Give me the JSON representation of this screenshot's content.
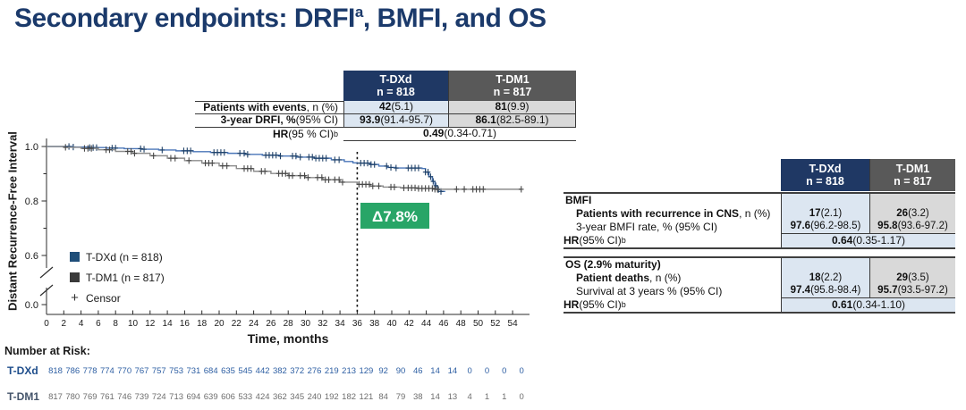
{
  "slide": {
    "title": {
      "pre": "Secondary endpoints: DRFI",
      "sup": "a",
      "post": ", BMFI, and OS"
    }
  },
  "columns": {
    "dxd": {
      "name": "T-DXd",
      "n": "n = 818"
    },
    "dm1": {
      "name": "T-DM1",
      "n": "n = 817"
    }
  },
  "drfi_table": {
    "rows": [
      {
        "label_b": "Patients with events",
        "label_r": ", n (%)",
        "dxd_b": "42",
        "dxd_r": " (5.1)",
        "dm1_b": "81",
        "dm1_r": " (9.9)"
      },
      {
        "label_b": "3-year DRFI, %",
        "label_r": " (95% CI)",
        "dxd_b": "93.9",
        "dxd_r": " (91.4-95.7)",
        "dm1_b": "86.1",
        "dm1_r": " (82.5-89.1)"
      }
    ],
    "hr": {
      "label_b": "HR",
      "label_r": " (95 % CI)",
      "sup": "b",
      "value_b": "0.49",
      "value_r": " (0.34-0.71)"
    }
  },
  "bmfi_table": {
    "section": "BMFI",
    "rows": [
      {
        "label_b": "Patients with recurrence in CNS",
        "label_r": ", n (%)",
        "dxd_b": "17",
        "dxd_r": " (2.1)",
        "dm1_b": "26",
        "dm1_r": " (3.2)"
      },
      {
        "label_b": "",
        "label_r": "3-year BMFI rate, % (95% CI)",
        "dxd_b": "97.6",
        "dxd_r": " (96.2-98.5)",
        "dm1_b": "95.8",
        "dm1_r": " (93.6-97.2)"
      }
    ],
    "hr": {
      "label_b": "HR",
      "label_r": " (95% CI)",
      "sup": "b",
      "value_b": "0.64",
      "value_r": " (0.35-1.17)"
    }
  },
  "os_table": {
    "section": "OS (2.9% maturity)",
    "rows": [
      {
        "label_b": "Patient deaths",
        "label_r": ", n (%)",
        "dxd_b": "18",
        "dxd_r": " (2.2)",
        "dm1_b": "29",
        "dm1_r": " (3.5)"
      },
      {
        "label_b": "",
        "label_r": "Survival at 3 years % (95% CI)",
        "dxd_b": "97.4",
        "dxd_r": " (95.8-98.4)",
        "dm1_b": "95.7",
        "dm1_r": " (93.5-97.2)"
      }
    ],
    "hr": {
      "label_b": "HR",
      "label_r": " (95% CI)",
      "sup": "b",
      "value_b": "0.61",
      "value_r": " (0.34-1.10)"
    }
  },
  "chart_data": {
    "type": "line",
    "subtype": "kaplan-meier-step",
    "ylabel": "Distant Recurrence-Free Interval",
    "xlabel": "Time, months",
    "x_ticks": [
      0,
      2,
      4,
      6,
      8,
      10,
      12,
      14,
      16,
      18,
      20,
      22,
      24,
      26,
      28,
      30,
      32,
      34,
      36,
      38,
      40,
      42,
      44,
      46,
      48,
      50,
      52,
      54
    ],
    "y_ticks": [
      "1.0",
      "0.8",
      "0.6",
      "0.0"
    ],
    "y_minor_ticks": [
      0.9,
      0.7
    ],
    "y_axis_break": true,
    "ylim_visible": [
      0.6,
      1.0
    ],
    "reference_line_x": 36,
    "annotation": {
      "text": "Δ7.8%",
      "near_x": 40,
      "color": "#28a567"
    },
    "legend": [
      {
        "label": "T-DXd (n = 818)",
        "swatch": "#1f4e79"
      },
      {
        "label": "T-DM1 (n = 817)",
        "swatch": "#3a3a3a"
      },
      {
        "label": "Censor",
        "marker": "+"
      }
    ],
    "series": [
      {
        "name": "T-DXd",
        "color": "#4a76b8",
        "censor_color": "#1d3f66",
        "steps": [
          [
            0,
            1.0
          ],
          [
            3,
            0.998
          ],
          [
            5,
            0.996
          ],
          [
            7,
            0.994
          ],
          [
            9,
            0.992
          ],
          [
            11,
            0.99
          ],
          [
            13,
            0.987
          ],
          [
            15,
            0.984
          ],
          [
            17,
            0.981
          ],
          [
            19,
            0.978
          ],
          [
            21,
            0.975
          ],
          [
            23,
            0.971
          ],
          [
            25,
            0.968
          ],
          [
            27,
            0.965
          ],
          [
            29,
            0.961
          ],
          [
            31,
            0.957
          ],
          [
            33,
            0.951
          ],
          [
            34.5,
            0.945
          ],
          [
            35.5,
            0.94
          ],
          [
            36,
            0.939
          ],
          [
            37.5,
            0.934
          ],
          [
            38.5,
            0.928
          ],
          [
            39.5,
            0.923
          ],
          [
            40.5,
            0.921
          ],
          [
            43.5,
            0.919
          ],
          [
            43.9,
            0.906
          ],
          [
            44.3,
            0.889
          ],
          [
            44.7,
            0.872
          ],
          [
            45,
            0.856
          ],
          [
            45.3,
            0.842
          ],
          [
            45.7,
            0.835
          ],
          [
            46.2,
            0.835
          ]
        ],
        "censors": [
          2.6,
          3.1,
          5,
          5.4,
          5.8,
          7.6,
          8,
          10.9,
          11.3,
          13.4,
          15.9,
          16.3,
          16.7,
          19.4,
          19.8,
          20.2,
          20.6,
          22.4,
          22.9,
          23.3,
          25.4,
          25.8,
          26.2,
          26.6,
          27.1,
          28.5,
          28.9,
          29.4,
          30.4,
          30.8,
          31.2,
          31.6,
          32,
          32.4,
          33.4,
          33.9,
          36.4,
          36.8,
          37.2,
          37.6,
          38,
          39.4,
          39.9,
          40.5,
          41.9,
          42.3,
          42.7,
          43.1,
          43.9,
          44.2,
          44.5,
          44.8,
          45.1,
          45.4,
          45.7
        ]
      },
      {
        "name": "T-DM1",
        "color": "#8c8c8c",
        "censor_color": "#474747",
        "steps": [
          [
            0,
            1.0
          ],
          [
            2,
            0.997
          ],
          [
            4,
            0.993
          ],
          [
            6,
            0.988
          ],
          [
            8,
            0.982
          ],
          [
            10,
            0.975
          ],
          [
            12,
            0.966
          ],
          [
            14,
            0.957
          ],
          [
            16,
            0.948
          ],
          [
            18,
            0.939
          ],
          [
            20,
            0.929
          ],
          [
            22,
            0.919
          ],
          [
            24,
            0.909
          ],
          [
            26,
            0.901
          ],
          [
            28,
            0.893
          ],
          [
            30,
            0.886
          ],
          [
            32,
            0.878
          ],
          [
            34,
            0.869
          ],
          [
            36,
            0.861
          ],
          [
            37.5,
            0.855
          ],
          [
            39,
            0.851
          ],
          [
            41,
            0.848
          ],
          [
            43,
            0.846
          ],
          [
            45,
            0.843
          ],
          [
            55,
            0.843
          ]
        ],
        "censors": [
          2.2,
          4.4,
          4.8,
          5.2,
          6.9,
          7.3,
          9.4,
          9.8,
          10.2,
          12.4,
          14.4,
          14.9,
          16.5,
          18.4,
          18.8,
          19.2,
          20.4,
          20.9,
          22.9,
          23.3,
          23.7,
          24.9,
          25.3,
          26.9,
          27.3,
          27.7,
          28.1,
          28.5,
          29.4,
          29.9,
          30.3,
          31.4,
          31.9,
          32.3,
          32.7,
          33.4,
          33.9,
          34.3,
          36.2,
          36.6,
          37,
          37.4,
          37.8,
          38.5,
          39.9,
          40.3,
          41.4,
          41.9,
          42.3,
          42.7,
          43.1,
          43.5,
          43.9,
          44.3,
          44.7,
          45,
          45.3,
          47.5,
          48.4,
          49.4,
          49.8,
          50.2,
          50.6,
          55
        ]
      }
    ],
    "number_at_risk": {
      "heading": "Number at Risk:",
      "months": [
        0,
        2,
        4,
        6,
        8,
        10,
        12,
        14,
        16,
        18,
        20,
        22,
        24,
        26,
        28,
        30,
        32,
        34,
        36,
        38,
        40,
        42,
        44,
        46,
        48,
        50,
        52,
        54
      ],
      "groups": [
        {
          "label": "T-DXd",
          "label_color": "#1f4e8c",
          "color": "#2e5fa3",
          "values": [
            818,
            786,
            778,
            774,
            770,
            767,
            757,
            753,
            731,
            684,
            635,
            545,
            442,
            382,
            372,
            276,
            219,
            213,
            129,
            92,
            90,
            46,
            14,
            14,
            0,
            0,
            0,
            0
          ]
        },
        {
          "label": "T-DM1",
          "label_color": "#44546a",
          "color": "#6e6e6e",
          "values": [
            817,
            780,
            769,
            761,
            746,
            739,
            724,
            713,
            694,
            639,
            606,
            533,
            424,
            362,
            345,
            240,
            192,
            182,
            121,
            84,
            79,
            38,
            14,
            13,
            4,
            1,
            1,
            0
          ]
        }
      ]
    }
  }
}
